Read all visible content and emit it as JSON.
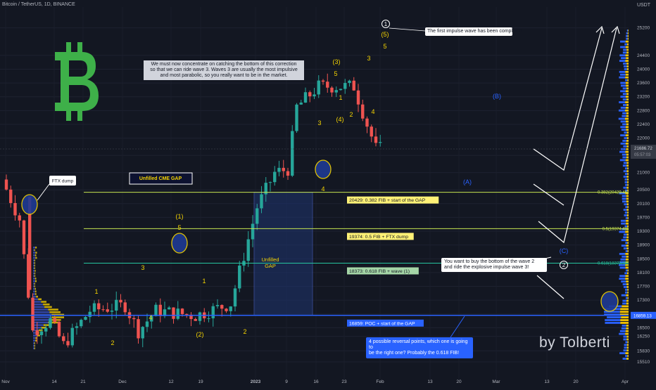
{
  "header": {
    "symbol_title": "Bitcoin / TetherUS, 1D, BINANCE",
    "currency": "USDT"
  },
  "watermark": "by Tolberti",
  "main_note": "We must now concentrate on catching the bottom of this correction\nso that we can ride wave 3. Waves 3 are usually the most impulsive\nand most parabolic, so you really want to be in the market.",
  "impulse_note": "The first impulse wave has been completed",
  "buy_note": "You want to buy the bottom of the wave 2\nand ride the explosive impulse wave 3!",
  "reversal_note": "4 possible reversal points, which one is going to\nbe the right one? Probably the 0.618 FIB!",
  "colors": {
    "background": "#131722",
    "up_candle": "#26a69a",
    "down_candle": "#ef5350",
    "fib_line": "#c8e650",
    "poc_line": "#2962ff",
    "wave_label": "#f5d400",
    "bitcoin_logo": "#3eb049"
  },
  "chart_data": {
    "type": "candlestick",
    "title": "Bitcoin / TetherUS, 1D, BINANCE",
    "y_unit": "USDT",
    "ylim": [
      15000,
      25600
    ],
    "y_ticks": [
      25200,
      24400,
      24000,
      23600,
      23200,
      22800,
      22400,
      22000,
      21500,
      21000,
      20500,
      20100,
      19700,
      19300,
      18900,
      18500,
      18100,
      17700,
      17300,
      16900,
      16500,
      16250,
      15830,
      15510
    ],
    "x_ticks": [
      "Nov",
      "14",
      "21",
      "Dec",
      "12",
      "19",
      "2023",
      "9",
      "16",
      "23",
      "Feb",
      "13",
      "20",
      "Mar",
      "13",
      "20",
      "Apr"
    ],
    "price_badges": [
      {
        "value": "21686.72",
        "sub": "05:57:03",
        "color": "#363a45"
      },
      {
        "value": "16859.13",
        "color": "#2962ff"
      }
    ],
    "candle_trend": {
      "segments": [
        {
          "value": 20800,
          "days": 0
        },
        {
          "value": 19650,
          "days": 4
        },
        {
          "value": 16400,
          "days": 7
        },
        {
          "value": 16700,
          "days": 11
        },
        {
          "value": 16000,
          "days": 14
        },
        {
          "value": 17000,
          "days": 20
        },
        {
          "value": 17150,
          "days": 28
        },
        {
          "value": 16400,
          "days": 31
        },
        {
          "value": 17000,
          "days": 35
        },
        {
          "value": 16850,
          "days": 44
        },
        {
          "value": 17200,
          "days": 52
        },
        {
          "value": 20000,
          "days": 58
        },
        {
          "value": 21000,
          "days": 62
        },
        {
          "value": 21100,
          "days": 65
        },
        {
          "value": 22900,
          "days": 67
        },
        {
          "value": 23500,
          "days": 72
        },
        {
          "value": 23500,
          "days": 80
        },
        {
          "value": 22400,
          "days": 83
        },
        {
          "value": 21700,
          "days": 85
        }
      ]
    },
    "fib_levels": [
      {
        "label": "0.382(20429.46)",
        "value": 20429.46,
        "box": "20429: 0.382 FIB + start of the GAP"
      },
      {
        "label": "0.5(19374.48)",
        "value": 19374.48,
        "box": "19374: 0.5 FIB + FTX dump"
      },
      {
        "label": "0.618(18373.98)",
        "value": 18373.98,
        "box": "18373: 0.618 FIB + wave (1)"
      },
      {
        "label": "16859.13",
        "value": 16859.13,
        "box": "16859: POC + start of the GAP"
      }
    ],
    "annotations": {
      "ftx_dump": "FTX dump",
      "cme_gap": "Unfilled CME GAP",
      "unfilled_gap": "Unfilled\nGAP",
      "waves": [
        "1",
        "2",
        "3",
        "4",
        "5",
        "(1)",
        "(2)",
        "(3)",
        "(4)",
        "(5)",
        "(A)",
        "(B)",
        "(C)",
        "1",
        "2",
        "3",
        "4",
        "5",
        "3",
        "4",
        "5",
        "1",
        "2"
      ],
      "circled": [
        "1",
        "2"
      ]
    }
  }
}
